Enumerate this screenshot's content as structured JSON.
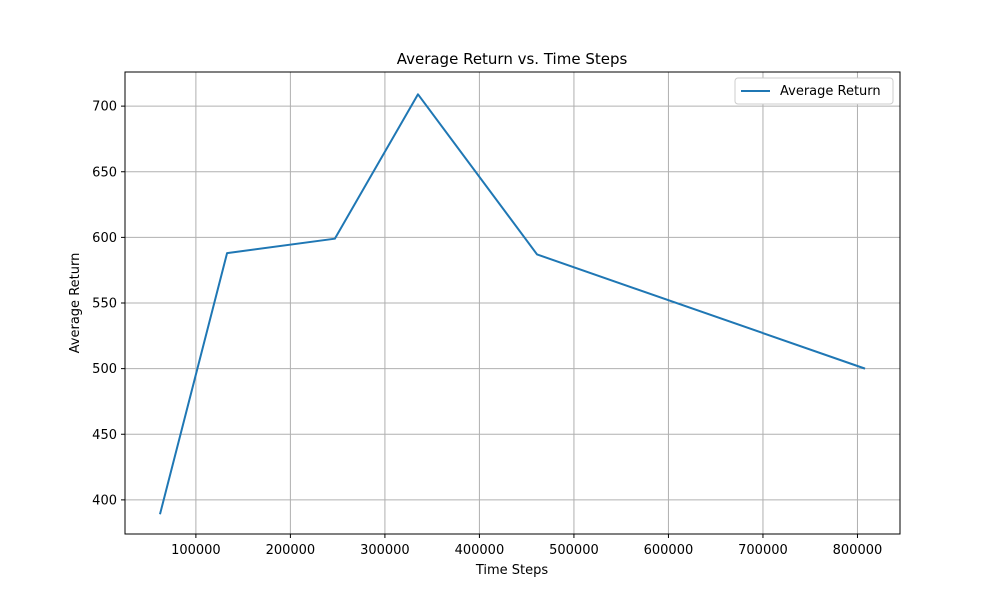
{
  "chart_data": {
    "type": "line",
    "title": "Average Return vs. Time Steps",
    "xlabel": "Time Steps",
    "ylabel": "Average Return",
    "xlim": [
      25000,
      845000
    ],
    "ylim": [
      374,
      726
    ],
    "x_ticks": [
      100000,
      200000,
      300000,
      400000,
      500000,
      600000,
      700000,
      800000
    ],
    "x_tick_labels": [
      "100000",
      "200000",
      "300000",
      "400000",
      "500000",
      "600000",
      "700000",
      "800000"
    ],
    "y_ticks": [
      400,
      450,
      500,
      550,
      600,
      650,
      700
    ],
    "y_tick_labels": [
      "400",
      "450",
      "500",
      "550",
      "600",
      "650",
      "700"
    ],
    "grid": true,
    "legend_position": "top-right",
    "series": [
      {
        "name": "Average Return",
        "color": "#1f77b4",
        "x": [
          62000,
          133000,
          247000,
          335000,
          461000,
          808000
        ],
        "y": [
          389,
          588,
          599,
          709,
          587,
          500
        ]
      }
    ]
  }
}
